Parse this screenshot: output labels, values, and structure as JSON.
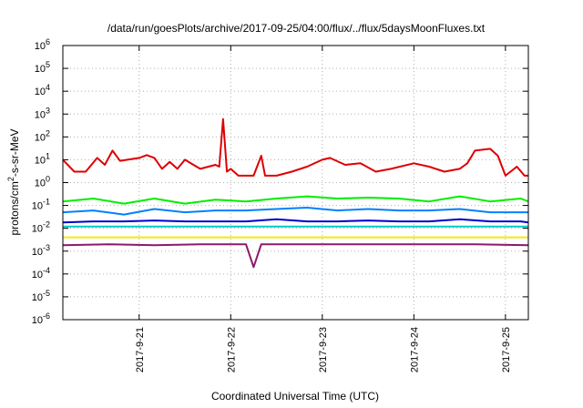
{
  "chart_data": {
    "type": "line",
    "title": "/data/run/goesPlots/archive/2017-09-25/04:00/flux/../flux/5daysMoonFluxes.txt",
    "xlabel": "Coordinated Universal Time (UTC)",
    "ylabel": {
      "pre": "protons/cm",
      "sup": "2",
      "post": "-s-sr-MeV"
    },
    "yscale": "log",
    "ylim": [
      1e-06,
      1000000.0
    ],
    "xlim": [
      "2017-09-20T04:00",
      "2017-09-25T06:00"
    ],
    "grid": true,
    "legend": "none",
    "y_ticks": [
      {
        "value": 1e-06,
        "base": "10",
        "exp": "-6"
      },
      {
        "value": 1e-05,
        "base": "10",
        "exp": "-5"
      },
      {
        "value": 0.0001,
        "base": "10",
        "exp": "-4"
      },
      {
        "value": 0.001,
        "base": "10",
        "exp": "-3"
      },
      {
        "value": 0.01,
        "base": "10",
        "exp": "-2"
      },
      {
        "value": 0.1,
        "base": "10",
        "exp": "-1"
      },
      {
        "value": 1.0,
        "base": "10",
        "exp": "0"
      },
      {
        "value": 10.0,
        "base": "10",
        "exp": "1"
      },
      {
        "value": 100.0,
        "base": "10",
        "exp": "2"
      },
      {
        "value": 1000.0,
        "base": "10",
        "exp": "3"
      },
      {
        "value": 10000.0,
        "base": "10",
        "exp": "4"
      },
      {
        "value": 100000.0,
        "base": "10",
        "exp": "5"
      },
      {
        "value": 1000000.0,
        "base": "10",
        "exp": "6"
      }
    ],
    "x_ticks": [
      {
        "value": "2017-09-21T00:00",
        "label": "2017-9-21"
      },
      {
        "value": "2017-09-22T00:00",
        "label": "2017-9-22"
      },
      {
        "value": "2017-09-23T00:00",
        "label": "2017-9-23"
      },
      {
        "value": "2017-09-24T00:00",
        "label": "2017-9-24"
      },
      {
        "value": "2017-09-25T00:00",
        "label": "2017-9-25"
      }
    ],
    "series": [
      {
        "color": "#dd0000",
        "data": [
          [
            "2017-09-20T04:00",
            10
          ],
          [
            "2017-09-20T07:00",
            3
          ],
          [
            "2017-09-20T10:00",
            3
          ],
          [
            "2017-09-20T13:00",
            12
          ],
          [
            "2017-09-20T15:00",
            6
          ],
          [
            "2017-09-20T17:00",
            25
          ],
          [
            "2017-09-20T19:00",
            9
          ],
          [
            "2017-09-21T00:00",
            12
          ],
          [
            "2017-09-21T02:00",
            16
          ],
          [
            "2017-09-21T04:00",
            12
          ],
          [
            "2017-09-21T06:00",
            4
          ],
          [
            "2017-09-21T08:00",
            8
          ],
          [
            "2017-09-21T10:00",
            4
          ],
          [
            "2017-09-21T12:00",
            10
          ],
          [
            "2017-09-21T16:00",
            4
          ],
          [
            "2017-09-21T20:00",
            6
          ],
          [
            "2017-09-22T00:00",
            4
          ],
          [
            "2017-09-21T21:00",
            5
          ],
          [
            "2017-09-21T22:00",
            600
          ],
          [
            "2017-09-21T23:00",
            3
          ],
          [
            "2017-09-22T02:00",
            2
          ],
          [
            "2017-09-22T06:00",
            2
          ],
          [
            "2017-09-22T08:00",
            15
          ],
          [
            "2017-09-22T09:00",
            2
          ],
          [
            "2017-09-22T12:00",
            2
          ],
          [
            "2017-09-22T16:00",
            3
          ],
          [
            "2017-09-22T20:00",
            5
          ],
          [
            "2017-09-23T00:00",
            10
          ],
          [
            "2017-09-23T02:00",
            12
          ],
          [
            "2017-09-23T06:00",
            6
          ],
          [
            "2017-09-23T10:00",
            7
          ],
          [
            "2017-09-23T14:00",
            3
          ],
          [
            "2017-09-23T18:00",
            4
          ],
          [
            "2017-09-24T00:00",
            7
          ],
          [
            "2017-09-24T04:00",
            5
          ],
          [
            "2017-09-24T08:00",
            3
          ],
          [
            "2017-09-24T12:00",
            4
          ],
          [
            "2017-09-24T14:00",
            7
          ],
          [
            "2017-09-24T16:00",
            25
          ],
          [
            "2017-09-24T20:00",
            30
          ],
          [
            "2017-09-24T22:00",
            15
          ],
          [
            "2017-09-25T00:00",
            2
          ],
          [
            "2017-09-25T03:00",
            5
          ],
          [
            "2017-09-25T05:00",
            2
          ],
          [
            "2017-09-25T06:00",
            2
          ]
        ]
      },
      {
        "color": "#00ee00",
        "data": [
          [
            "2017-09-20T04:00",
            0.15
          ],
          [
            "2017-09-20T12:00",
            0.2
          ],
          [
            "2017-09-20T20:00",
            0.12
          ],
          [
            "2017-09-21T04:00",
            0.2
          ],
          [
            "2017-09-21T12:00",
            0.12
          ],
          [
            "2017-09-21T20:00",
            0.18
          ],
          [
            "2017-09-22T04:00",
            0.15
          ],
          [
            "2017-09-22T12:00",
            0.2
          ],
          [
            "2017-09-22T20:00",
            0.25
          ],
          [
            "2017-09-23T04:00",
            0.2
          ],
          [
            "2017-09-23T12:00",
            0.22
          ],
          [
            "2017-09-23T20:00",
            0.2
          ],
          [
            "2017-09-24T04:00",
            0.15
          ],
          [
            "2017-09-24T12:00",
            0.25
          ],
          [
            "2017-09-24T20:00",
            0.15
          ],
          [
            "2017-09-25T04:00",
            0.2
          ],
          [
            "2017-09-25T06:00",
            0.15
          ]
        ]
      },
      {
        "color": "#0080ff",
        "data": [
          [
            "2017-09-20T04:00",
            0.05
          ],
          [
            "2017-09-20T12:00",
            0.06
          ],
          [
            "2017-09-20T20:00",
            0.04
          ],
          [
            "2017-09-21T04:00",
            0.07
          ],
          [
            "2017-09-21T12:00",
            0.05
          ],
          [
            "2017-09-21T20:00",
            0.06
          ],
          [
            "2017-09-22T04:00",
            0.06
          ],
          [
            "2017-09-22T12:00",
            0.07
          ],
          [
            "2017-09-22T20:00",
            0.08
          ],
          [
            "2017-09-23T04:00",
            0.06
          ],
          [
            "2017-09-23T12:00",
            0.07
          ],
          [
            "2017-09-23T20:00",
            0.06
          ],
          [
            "2017-09-24T04:00",
            0.06
          ],
          [
            "2017-09-24T12:00",
            0.07
          ],
          [
            "2017-09-24T20:00",
            0.05
          ],
          [
            "2017-09-25T04:00",
            0.05
          ],
          [
            "2017-09-25T06:00",
            0.05
          ]
        ]
      },
      {
        "color": "#0000cc",
        "data": [
          [
            "2017-09-20T04:00",
            0.018
          ],
          [
            "2017-09-20T12:00",
            0.02
          ],
          [
            "2017-09-20T20:00",
            0.02
          ],
          [
            "2017-09-21T04:00",
            0.022
          ],
          [
            "2017-09-21T12:00",
            0.02
          ],
          [
            "2017-09-21T20:00",
            0.02
          ],
          [
            "2017-09-22T04:00",
            0.02
          ],
          [
            "2017-09-22T12:00",
            0.025
          ],
          [
            "2017-09-22T20:00",
            0.02
          ],
          [
            "2017-09-23T04:00",
            0.02
          ],
          [
            "2017-09-23T12:00",
            0.022
          ],
          [
            "2017-09-23T20:00",
            0.02
          ],
          [
            "2017-09-24T04:00",
            0.02
          ],
          [
            "2017-09-24T12:00",
            0.025
          ],
          [
            "2017-09-24T20:00",
            0.02
          ],
          [
            "2017-09-25T04:00",
            0.02
          ],
          [
            "2017-09-25T06:00",
            0.018
          ]
        ]
      },
      {
        "color": "#00cccc",
        "data": [
          [
            "2017-09-20T04:00",
            0.012
          ],
          [
            "2017-09-20T16:00",
            0.012
          ],
          [
            "2017-09-21T04:00",
            0.012
          ],
          [
            "2017-09-21T16:00",
            0.012
          ],
          [
            "2017-09-22T04:00",
            0.012
          ],
          [
            "2017-09-22T16:00",
            0.012
          ],
          [
            "2017-09-23T04:00",
            0.012
          ],
          [
            "2017-09-23T16:00",
            0.012
          ],
          [
            "2017-09-24T04:00",
            0.012
          ],
          [
            "2017-09-24T16:00",
            0.012
          ],
          [
            "2017-09-25T06:00",
            0.012
          ]
        ]
      },
      {
        "color": "#eeee00",
        "data": [
          [
            "2017-09-20T04:00",
            0.004
          ],
          [
            "2017-09-21T00:00",
            0.004
          ],
          [
            "2017-09-22T00:00",
            0.004
          ],
          [
            "2017-09-23T00:00",
            0.004
          ],
          [
            "2017-09-24T00:00",
            0.004
          ],
          [
            "2017-09-25T00:00",
            0.004
          ],
          [
            "2017-09-25T06:00",
            0.004
          ]
        ]
      },
      {
        "color": "#8b1a6b",
        "data": [
          [
            "2017-09-20T04:00",
            0.0018
          ],
          [
            "2017-09-20T16:00",
            0.002
          ],
          [
            "2017-09-21T04:00",
            0.0018
          ],
          [
            "2017-09-21T16:00",
            0.002
          ],
          [
            "2017-09-22T04:00",
            0.002
          ],
          [
            "2017-09-22T06:00",
            0.0002
          ],
          [
            "2017-09-22T08:00",
            0.002
          ],
          [
            "2017-09-22T16:00",
            0.002
          ],
          [
            "2017-09-23T04:00",
            0.002
          ],
          [
            "2017-09-23T16:00",
            0.002
          ],
          [
            "2017-09-24T04:00",
            0.002
          ],
          [
            "2017-09-24T16:00",
            0.002
          ],
          [
            "2017-09-25T06:00",
            0.0018
          ]
        ]
      }
    ]
  }
}
